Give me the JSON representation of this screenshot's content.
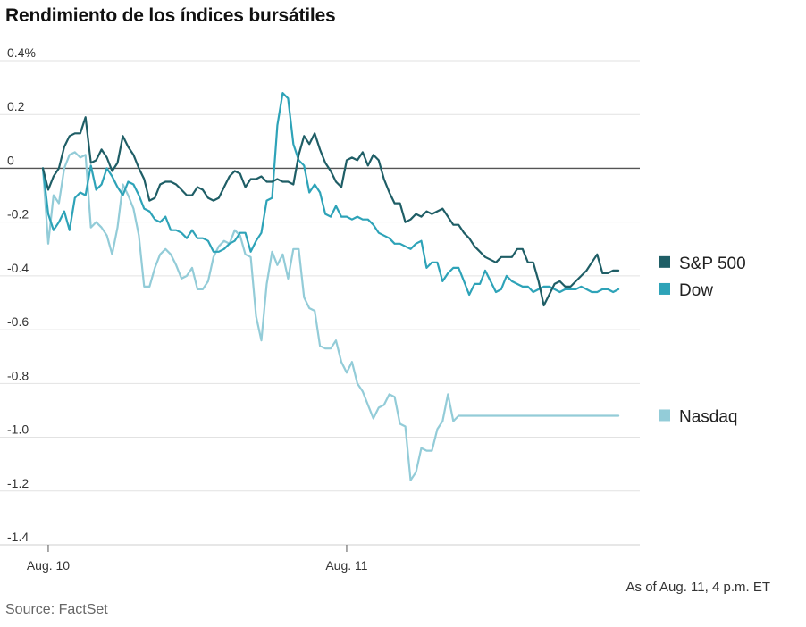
{
  "chart_data": {
    "type": "line",
    "title": "Rendimiento de los índices bursátiles",
    "yticks": [
      "0.4%",
      "0.2",
      "0",
      "-0.2",
      "-0.4",
      "-0.6",
      "-0.8",
      "-1.0",
      "-1.2",
      "-1.4"
    ],
    "ylim": [
      -1.4,
      0.4
    ],
    "xticks": [
      "Aug. 10",
      "Aug. 11"
    ],
    "xlim": [
      0,
      112
    ],
    "xtick_positions": [
      1,
      57
    ],
    "grid": true,
    "legend": "right",
    "note": "As of Aug. 11, 4 p.m. ET",
    "source": "Source: FactSet",
    "series": [
      {
        "name": "S&P 500",
        "color": "#1f5e66",
        "values": [
          0.0,
          -0.08,
          -0.03,
          0.0,
          0.08,
          0.12,
          0.13,
          0.13,
          0.19,
          0.02,
          0.03,
          0.07,
          0.04,
          -0.01,
          0.02,
          0.12,
          0.08,
          0.05,
          0.0,
          -0.04,
          -0.12,
          -0.11,
          -0.06,
          -0.05,
          -0.05,
          -0.06,
          -0.08,
          -0.1,
          -0.1,
          -0.07,
          -0.08,
          -0.11,
          -0.12,
          -0.11,
          -0.07,
          -0.03,
          -0.01,
          -0.02,
          -0.07,
          -0.04,
          -0.04,
          -0.03,
          -0.05,
          -0.05,
          -0.04,
          -0.05,
          -0.05,
          -0.06,
          0.05,
          0.12,
          0.09,
          0.13,
          0.07,
          0.02,
          -0.01,
          -0.05,
          -0.07,
          0.03,
          0.04,
          0.03,
          0.06,
          0.01,
          0.05,
          0.03,
          -0.04,
          -0.09,
          -0.13,
          -0.13,
          -0.2,
          -0.19,
          -0.17,
          -0.18,
          -0.16,
          -0.17,
          -0.16,
          -0.15,
          -0.18,
          -0.21,
          -0.21,
          -0.24,
          -0.26,
          -0.29,
          -0.31,
          -0.33,
          -0.34,
          -0.35,
          -0.33,
          -0.33,
          -0.33,
          -0.3,
          -0.3,
          -0.35,
          -0.35,
          -0.42,
          -0.51,
          -0.47,
          -0.43,
          -0.42,
          -0.44,
          -0.44,
          -0.42,
          -0.4,
          -0.38,
          -0.35,
          -0.32,
          -0.39,
          -0.39,
          -0.38,
          -0.38
        ]
      },
      {
        "name": "Dow",
        "color": "#2ea3b8",
        "values": [
          0.0,
          -0.17,
          -0.23,
          -0.2,
          -0.16,
          -0.23,
          -0.11,
          -0.09,
          -0.1,
          0.01,
          -0.08,
          -0.06,
          0.0,
          -0.03,
          -0.07,
          -0.1,
          -0.05,
          -0.06,
          -0.1,
          -0.15,
          -0.16,
          -0.19,
          -0.2,
          -0.18,
          -0.23,
          -0.23,
          -0.24,
          -0.26,
          -0.23,
          -0.26,
          -0.26,
          -0.27,
          -0.31,
          -0.31,
          -0.3,
          -0.28,
          -0.27,
          -0.24,
          -0.24,
          -0.31,
          -0.27,
          -0.24,
          -0.12,
          -0.11,
          0.16,
          0.28,
          0.26,
          0.09,
          0.03,
          0.01,
          -0.09,
          -0.06,
          -0.09,
          -0.17,
          -0.18,
          -0.14,
          -0.18,
          -0.18,
          -0.19,
          -0.18,
          -0.19,
          -0.19,
          -0.21,
          -0.24,
          -0.25,
          -0.26,
          -0.28,
          -0.28,
          -0.29,
          -0.3,
          -0.28,
          -0.27,
          -0.37,
          -0.35,
          -0.35,
          -0.42,
          -0.39,
          -0.37,
          -0.37,
          -0.42,
          -0.47,
          -0.43,
          -0.43,
          -0.38,
          -0.42,
          -0.46,
          -0.45,
          -0.4,
          -0.42,
          -0.43,
          -0.44,
          -0.44,
          -0.46,
          -0.45,
          -0.44,
          -0.44,
          -0.45,
          -0.46,
          -0.45,
          -0.45,
          -0.45,
          -0.44,
          -0.45,
          -0.46,
          -0.46,
          -0.45,
          -0.45,
          -0.46,
          -0.45
        ]
      },
      {
        "name": "Nasdaq",
        "color": "#93ccd8",
        "values": [
          0.0,
          -0.28,
          -0.1,
          -0.13,
          0.0,
          0.05,
          0.06,
          0.04,
          0.05,
          -0.22,
          -0.2,
          -0.22,
          -0.25,
          -0.32,
          -0.22,
          -0.06,
          -0.1,
          -0.15,
          -0.25,
          -0.44,
          -0.44,
          -0.37,
          -0.32,
          -0.3,
          -0.32,
          -0.36,
          -0.41,
          -0.4,
          -0.37,
          -0.45,
          -0.45,
          -0.42,
          -0.33,
          -0.29,
          -0.27,
          -0.28,
          -0.23,
          -0.25,
          -0.32,
          -0.33,
          -0.55,
          -0.64,
          -0.43,
          -0.31,
          -0.36,
          -0.32,
          -0.41,
          -0.3,
          -0.3,
          -0.48,
          -0.52,
          -0.53,
          -0.66,
          -0.67,
          -0.67,
          -0.64,
          -0.72,
          -0.76,
          -0.72,
          -0.8,
          -0.83,
          -0.88,
          -0.93,
          -0.89,
          -0.88,
          -0.84,
          -0.85,
          -0.95,
          -0.96,
          -1.16,
          -1.13,
          -1.04,
          -1.05,
          -1.05,
          -0.97,
          -0.94,
          -0.84,
          -0.94,
          -0.92,
          -0.92,
          -0.92,
          -0.92,
          -0.92,
          -0.92,
          -0.92,
          -0.92,
          -0.92,
          -0.92,
          -0.92,
          -0.92,
          -0.92,
          -0.92,
          -0.92,
          -0.92,
          -0.92,
          -0.92,
          -0.92,
          -0.92,
          -0.92,
          -0.92,
          -0.92,
          -0.92,
          -0.92,
          -0.92,
          -0.92,
          -0.92,
          -0.92,
          -0.92,
          -0.92
        ]
      }
    ]
  }
}
